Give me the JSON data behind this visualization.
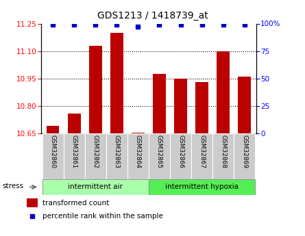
{
  "title": "GDS1213 / 1418739_at",
  "samples": [
    "GSM32860",
    "GSM32861",
    "GSM32862",
    "GSM32863",
    "GSM32864",
    "GSM32865",
    "GSM32866",
    "GSM32867",
    "GSM32868",
    "GSM32869"
  ],
  "transformed_count": [
    10.69,
    10.76,
    11.13,
    11.2,
    10.655,
    10.975,
    10.95,
    10.93,
    11.1,
    10.96
  ],
  "percentile_rank": [
    99,
    99,
    99,
    99,
    97,
    99,
    99,
    99,
    99,
    99
  ],
  "ylim_left": [
    10.65,
    11.25
  ],
  "ylim_right": [
    0,
    100
  ],
  "yticks_left": [
    10.65,
    10.8,
    10.95,
    11.1,
    11.25
  ],
  "yticks_right": [
    0,
    25,
    50,
    75,
    100
  ],
  "bar_color": "#BB0000",
  "dot_color": "#0000CC",
  "group1_label": "intermittent air",
  "group2_label": "intermittent hypoxia",
  "group1_count": 5,
  "group2_count": 5,
  "group1_color": "#AAFFAA",
  "group2_color": "#55EE55",
  "sample_bg_color": "#CCCCCC",
  "stress_label": "stress",
  "legend_bar_label": "transformed count",
  "legend_dot_label": "percentile rank within the sample",
  "grid_lines": [
    10.8,
    10.95,
    11.1
  ],
  "bar_width": 0.6
}
